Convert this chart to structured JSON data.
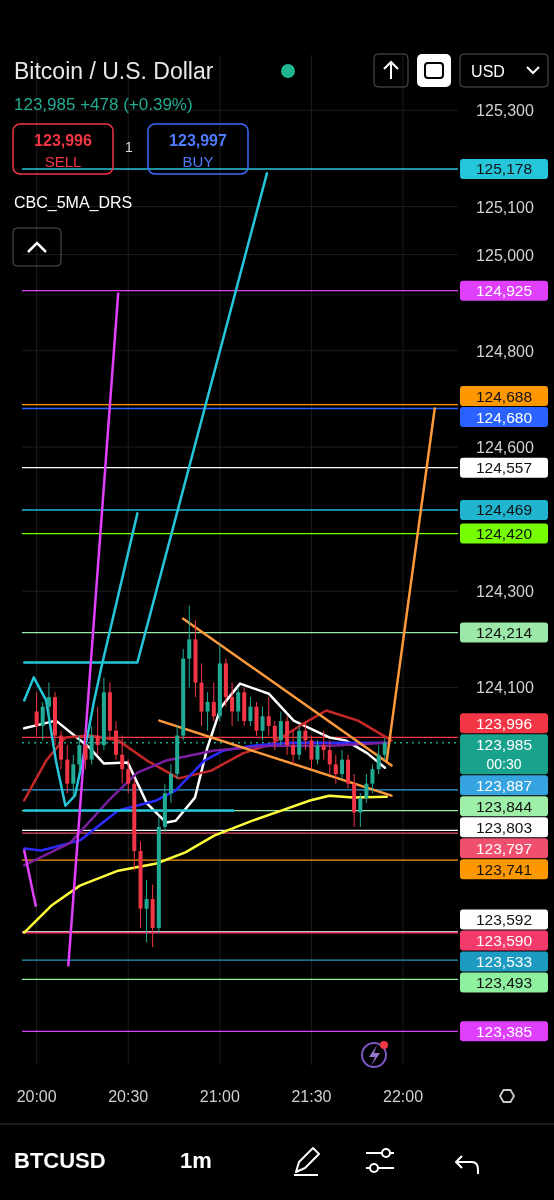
{
  "chart_data": {
    "type": "candlestick",
    "title": "Bitcoin / U.S. Dollar",
    "subtitle": "123,985  +478 (+0.39%)",
    "x": [
      20,
      20.033,
      20.067,
      20.1,
      20.133,
      20.167,
      20.2,
      20.233,
      20.267,
      20.3,
      20.333,
      20.367,
      20.4,
      20.433,
      20.467,
      20.5,
      20.533,
      20.567,
      20.6,
      20.633,
      20.667,
      20.7,
      20.733,
      20.767,
      20.8,
      20.833,
      20.867,
      20.9,
      20.933,
      20.967,
      21,
      21.033,
      21.067,
      21.1,
      21.133,
      21.167,
      21.2,
      21.233,
      21.267,
      21.3,
      21.333,
      21.367,
      21.4,
      21.433,
      21.467,
      21.5,
      21.533,
      21.567,
      21.6,
      21.633,
      21.667,
      21.7,
      21.733,
      21.767,
      21.8,
      21.833,
      21.867,
      21.9
    ],
    "ohlc": [
      [
        124050,
        124090,
        124000,
        124020
      ],
      [
        124020,
        124070,
        123990,
        124060
      ],
      [
        124060,
        124110,
        124030,
        124080
      ],
      [
        124080,
        124090,
        123980,
        124000
      ],
      [
        124000,
        124010,
        123930,
        123950
      ],
      [
        123950,
        123980,
        123880,
        123900
      ],
      [
        123900,
        123960,
        123870,
        123940
      ],
      [
        123940,
        124000,
        123920,
        123980
      ],
      [
        123980,
        124010,
        123930,
        123950
      ],
      [
        123950,
        124020,
        123940,
        124000
      ],
      [
        124000,
        124060,
        123960,
        123980
      ],
      [
        123980,
        124120,
        123970,
        124090
      ],
      [
        124090,
        124110,
        123990,
        124010
      ],
      [
        124010,
        124030,
        123950,
        123960
      ],
      [
        123960,
        124000,
        123900,
        123930
      ],
      [
        123930,
        123950,
        123880,
        123900
      ],
      [
        123900,
        123910,
        123720,
        123760
      ],
      [
        123760,
        123780,
        123600,
        123640
      ],
      [
        123640,
        123700,
        123570,
        123660
      ],
      [
        123660,
        123690,
        123560,
        123600
      ],
      [
        123600,
        123830,
        123590,
        123810
      ],
      [
        123810,
        123900,
        123800,
        123880
      ],
      [
        123880,
        123940,
        123860,
        123920
      ],
      [
        123920,
        124020,
        123910,
        124000
      ],
      [
        124000,
        124180,
        123990,
        124160
      ],
      [
        124160,
        124270,
        124100,
        124200
      ],
      [
        124200,
        124240,
        124080,
        124110
      ],
      [
        124110,
        124150,
        124020,
        124050
      ],
      [
        124050,
        124090,
        124010,
        124070
      ],
      [
        124070,
        124110,
        124030,
        124040
      ],
      [
        124040,
        124190,
        124030,
        124150
      ],
      [
        124150,
        124160,
        124060,
        124080
      ],
      [
        124080,
        124110,
        124020,
        124050
      ],
      [
        124050,
        124100,
        124030,
        124090
      ],
      [
        124090,
        124100,
        124020,
        124030
      ],
      [
        124030,
        124080,
        124020,
        124060
      ],
      [
        124060,
        124070,
        124000,
        124010
      ],
      [
        124010,
        124060,
        123990,
        124040
      ],
      [
        124040,
        124080,
        124000,
        124020
      ],
      [
        124020,
        124030,
        123970,
        123990
      ],
      [
        123990,
        124050,
        123980,
        124030
      ],
      [
        124030,
        124040,
        123960,
        123980
      ],
      [
        123980,
        124010,
        123940,
        123960
      ],
      [
        123960,
        124020,
        123950,
        124010
      ],
      [
        124010,
        124030,
        123970,
        123990
      ],
      [
        123990,
        124000,
        123930,
        123950
      ],
      [
        123950,
        123990,
        123940,
        123980
      ],
      [
        123980,
        124010,
        123950,
        123970
      ],
      [
        123970,
        123990,
        123920,
        123940
      ],
      [
        123940,
        123960,
        123900,
        123920
      ],
      [
        123920,
        123970,
        123910,
        123950
      ],
      [
        123950,
        123960,
        123890,
        123900
      ],
      [
        123900,
        123920,
        123810,
        123840
      ],
      [
        123840,
        123880,
        123810,
        123870
      ],
      [
        123870,
        123920,
        123860,
        123900
      ],
      [
        123900,
        123940,
        123880,
        123930
      ],
      [
        123930,
        123980,
        123920,
        123960
      ],
      [
        123960,
        123995,
        123950,
        123985
      ]
    ],
    "colors": [
      "#f23645",
      "#22ab94",
      "#22ab94",
      "#f23645",
      "#f23645",
      "#f23645",
      "#22ab94",
      "#22ab94",
      "#f23645",
      "#22ab94",
      "#f23645",
      "#22ab94",
      "#f23645",
      "#f23645",
      "#f23645",
      "#f23645",
      "#f23645",
      "#f23645",
      "#22ab94",
      "#f23645",
      "#22ab94",
      "#22ab94",
      "#22ab94",
      "#22ab94",
      "#22ab94",
      "#22ab94",
      "#f23645",
      "#f23645",
      "#22ab94",
      "#f23645",
      "#22ab94",
      "#f23645",
      "#f23645",
      "#22ab94",
      "#f23645",
      "#22ab94",
      "#f23645",
      "#22ab94",
      "#f23645",
      "#f23645",
      "#22ab94",
      "#f23645",
      "#f23645",
      "#22ab94",
      "#f23645",
      "#f23645",
      "#22ab94",
      "#f23645",
      "#f23645",
      "#f23645",
      "#22ab94",
      "#f23645",
      "#f23645",
      "#22ab94",
      "#22ab94",
      "#22ab94",
      "#22ab94",
      "#22ab94"
    ],
    "series": [
      {
        "type": "line",
        "color": "#ffffff",
        "x": [
          19.932,
          20.105,
          20.288,
          20.366,
          20.497,
          20.602,
          20.707,
          20.759,
          20.864,
          20.932,
          21.005,
          21.11,
          21.267,
          21.403,
          21.492,
          21.597,
          21.686,
          21.806,
          21.901
        ],
        "values": [
          124015,
          124031,
          123975,
          123942,
          123944,
          123859,
          123819,
          123823,
          123871,
          123975,
          124058,
          124108,
          124087,
          124031,
          124015,
          123996,
          123990,
          123963,
          123933
        ]
      },
      {
        "type": "line",
        "color": "#c62828",
        "x": [
          19.932,
          20.052,
          20.157,
          20.288,
          20.445,
          20.602,
          20.775,
          20.953,
          21.126,
          21.283,
          21.44,
          21.581,
          21.754,
          21.937
        ],
        "values": [
          123865,
          123948,
          123996,
          124000,
          123990,
          123948,
          123911,
          123927,
          123963,
          123983,
          124021,
          124052,
          124031,
          123990
        ]
      },
      {
        "type": "line",
        "color": "#2b2bff",
        "x": [
          19.932,
          20.026,
          20.236,
          20.445,
          20.654,
          20.759,
          20.916,
          21.021,
          21.178,
          21.387,
          21.911
        ],
        "values": [
          123765,
          123761,
          123782,
          123844,
          123865,
          123886,
          123948,
          123969,
          123979,
          123985,
          123985
        ]
      },
      {
        "type": "line",
        "color": "#7b1fa2",
        "x": [
          19.932,
          20.183,
          20.393,
          20.55,
          20.707,
          20.969,
          21.283,
          21.597,
          21.911
        ],
        "values": [
          123730,
          123777,
          123865,
          123923,
          123948,
          123969,
          123979,
          123979,
          123985
        ]
      },
      {
        "type": "line",
        "color": "#ffff3b",
        "x": [
          19.932,
          20.079,
          20.236,
          20.445,
          20.654,
          20.812,
          20.969,
          21.178,
          21.335,
          21.492,
          21.597,
          21.728,
          21.911
        ],
        "values": [
          123590,
          123646,
          123688,
          123719,
          123734,
          123757,
          123792,
          123823,
          123844,
          123865,
          123875,
          123871,
          123873
        ]
      },
      {
        "type": "line",
        "color": "#ff9a3c",
        "x": [
          20.8,
          21.937
        ],
        "values": [
          124243,
          123938
        ]
      },
      {
        "type": "line",
        "color": "#ff9a3c",
        "x": [
          20.67,
          21.937
        ],
        "values": [
          124031,
          123875
        ]
      },
      {
        "type": "line",
        "color": "#ff9a3c",
        "x": [
          21.911,
          22.173
        ],
        "values": [
          123948,
          124680
        ]
      },
      {
        "type": "line",
        "color": "#26c6da",
        "x": [
          19.932,
          19.984,
          20.052,
          20.105,
          20.157,
          20.209,
          20.262,
          20.314,
          20.356,
          20.55
        ],
        "values": [
          124073,
          124121,
          124073,
          123948,
          123854,
          123875,
          123969,
          124073,
          124146,
          124462
        ]
      },
      {
        "type": "line",
        "color": "#26c6da",
        "x": [
          19.932,
          20.55,
          21.257
        ],
        "values": [
          124152,
          124152,
          125169
        ]
      },
      {
        "type": "line",
        "color": "#26c6da",
        "x": [
          19.932,
          21.073
        ],
        "values": [
          123844,
          123844
        ]
      },
      {
        "type": "line",
        "color": "#e040fb",
        "x": [
          20.173,
          20.445
        ],
        "values": [
          123522,
          124919
        ]
      },
      {
        "type": "line",
        "color": "#e040fb",
        "x": [
          19.932,
          19.995
        ],
        "values": [
          123761,
          123646
        ]
      }
    ],
    "xlim": [
      19.92,
      22.3
    ],
    "xticks": [
      {
        "value": 20,
        "label": "20:00"
      },
      {
        "value": 20.5,
        "label": "20:30"
      },
      {
        "value": 21,
        "label": "21:00"
      },
      {
        "value": 21.5,
        "label": "21:30"
      },
      {
        "value": 22,
        "label": "22:00"
      }
    ],
    "ylim": [
      123315,
      125415
    ],
    "yticks": [
      {
        "value": 124100,
        "label": "124,100"
      },
      {
        "value": 124300,
        "label": "124,300"
      },
      {
        "value": 124600,
        "label": "124,600"
      },
      {
        "value": 124800,
        "label": "124,800"
      },
      {
        "value": 125000,
        "label": "125,000"
      },
      {
        "value": 125100,
        "label": "125,100"
      },
      {
        "value": 125300,
        "label": "125,300"
      }
    ],
    "grid": true,
    "ref_lines": [
      {
        "axis": "y",
        "value": 125178,
        "label": "125,178",
        "color": "#26c6da"
      },
      {
        "axis": "y",
        "value": 124925,
        "label": "124,925",
        "color": "#e040fb"
      },
      {
        "axis": "y",
        "value": 124688,
        "label": "124,688",
        "color": "#ff9800"
      },
      {
        "axis": "y",
        "value": 124680,
        "label": "124,680",
        "color": "#2962ff"
      },
      {
        "axis": "y",
        "value": 124557,
        "label": "124,557",
        "color": "#ffffff"
      },
      {
        "axis": "y",
        "value": 124469,
        "label": "124,469",
        "color": "#22b5d0"
      },
      {
        "axis": "y",
        "value": 124420,
        "label": "124,420",
        "color": "#76ff03"
      },
      {
        "axis": "y",
        "value": 124214,
        "label": "124,214",
        "color": "#9be8a8"
      },
      {
        "axis": "y",
        "value": 123996,
        "label": "123,996",
        "color": "#f23645"
      },
      {
        "axis": "y",
        "value": 123985,
        "label": "123,985",
        "color": "#1aa38c",
        "line_style": "dotted"
      },
      {
        "axis": "y",
        "value": 123887,
        "label": "123,887",
        "color": "#35a4e0"
      },
      {
        "axis": "y",
        "value": 123844,
        "label": "123,844",
        "color": "#9ef0a8"
      },
      {
        "axis": "y",
        "value": 123803,
        "label": "123,803",
        "color": "#ffffff"
      },
      {
        "axis": "y",
        "value": 123797,
        "label": "123,797",
        "color": "#f0506e"
      },
      {
        "axis": "y",
        "value": 123741,
        "label": "123,741",
        "color": "#ff9800"
      },
      {
        "axis": "y",
        "value": 123592,
        "label": "123,592",
        "color": "#ffffff"
      },
      {
        "axis": "y",
        "value": 123590,
        "label": "123,590",
        "color": "#f23a6b"
      },
      {
        "axis": "y",
        "value": 123533,
        "label": "123,533",
        "color": "#1e9bc2"
      },
      {
        "axis": "y",
        "value": 123493,
        "label": "123,493",
        "color": "#8ff0a0"
      },
      {
        "axis": "y",
        "value": 123385,
        "label": "123,385",
        "color": "#e040fb"
      }
    ],
    "annotations": [
      "123,996",
      "SELL",
      "1",
      "123,997",
      "BUY",
      "CBC_5MA_DRS",
      "USD",
      "00:30",
      "BTCUSD",
      "1m"
    ]
  }
}
